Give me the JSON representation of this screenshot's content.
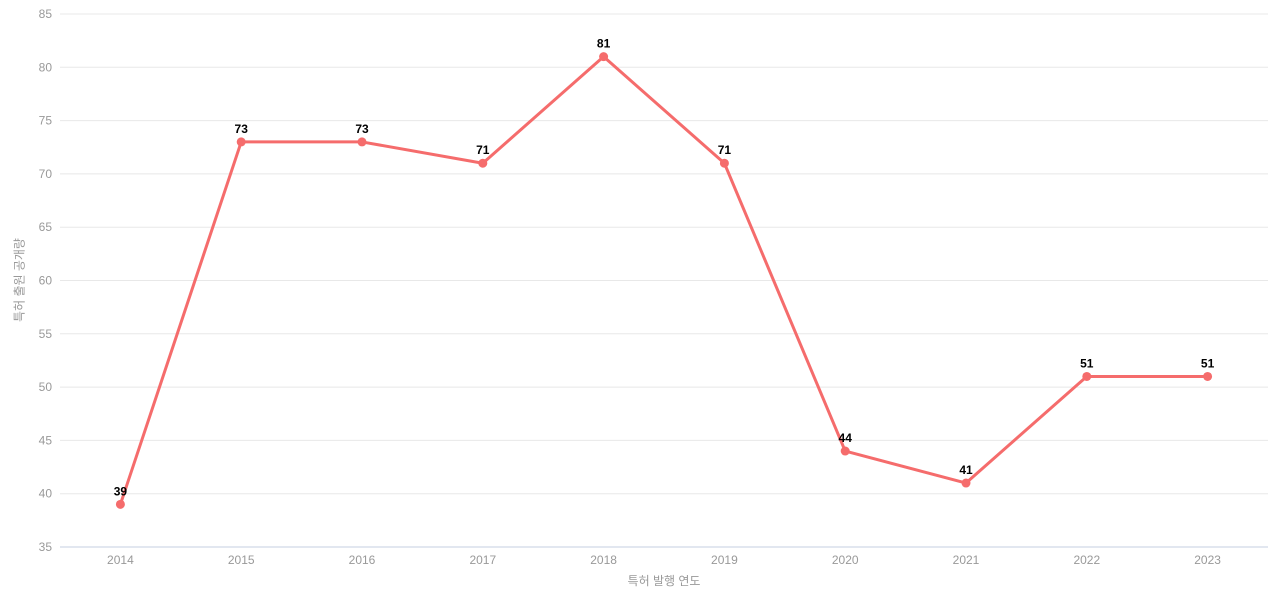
{
  "chart_data": {
    "type": "line",
    "title": "",
    "xlabel": "특허 발행 연도",
    "ylabel": "특허 출원 공개량",
    "categories": [
      "2014",
      "2015",
      "2016",
      "2017",
      "2018",
      "2019",
      "2020",
      "2021",
      "2022",
      "2023"
    ],
    "series": [
      {
        "name": "특허 출원 공개량",
        "values": [
          39,
          73,
          73,
          71,
          81,
          71,
          44,
          41,
          51,
          51
        ]
      }
    ],
    "ylim": [
      35,
      85
    ],
    "y_ticks": [
      35,
      40,
      45,
      50,
      55,
      60,
      65,
      70,
      75,
      80,
      85
    ],
    "grid": true,
    "legend_position": "none",
    "data_labels": true,
    "colors": {
      "line": "#f56c6c",
      "point": "#f56c6c",
      "value_label": "#000000",
      "tick_label": "#999999",
      "axis_title": "#999999",
      "grid_line": "#e8e8e8",
      "axis_line": "#c5cfe0",
      "background": "#ffffff"
    }
  }
}
